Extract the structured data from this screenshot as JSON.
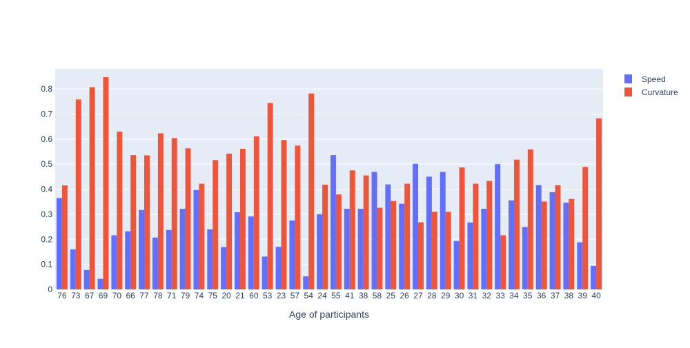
{
  "chart_data": {
    "type": "bar",
    "xlabel": "Age of participants",
    "ylabel": "",
    "ylim": [
      0,
      0.88
    ],
    "yticks": [
      0,
      0.1,
      0.2,
      0.3,
      0.4,
      0.5,
      0.6,
      0.7,
      0.8
    ],
    "ytick_labels": [
      "0",
      "0.1",
      "0.2",
      "0.3",
      "0.4",
      "0.5",
      "0.6",
      "0.7",
      "0.8"
    ],
    "grid": true,
    "legend_position": "top-right",
    "categories": [
      "76",
      "73",
      "67",
      "69",
      "70",
      "66",
      "77",
      "78",
      "71",
      "79",
      "74",
      "75",
      "20",
      "21",
      "60",
      "53",
      "23",
      "57",
      "54",
      "24",
      "55",
      "41",
      "38",
      "58",
      "25",
      "26",
      "27",
      "28",
      "29",
      "30",
      "31",
      "32",
      "33",
      "34",
      "35",
      "36",
      "37",
      "38",
      "39",
      "40"
    ],
    "series": [
      {
        "name": "Speed",
        "color": "#636efa",
        "values": [
          0.365,
          0.16,
          0.077,
          0.042,
          0.216,
          0.232,
          0.317,
          0.207,
          0.237,
          0.322,
          0.397,
          0.24,
          0.169,
          0.308,
          0.291,
          0.131,
          0.17,
          0.275,
          0.052,
          0.3,
          0.536,
          0.322,
          0.322,
          0.469,
          0.419,
          0.342,
          0.501,
          0.45,
          0.469,
          0.193,
          0.267,
          0.322,
          0.5,
          0.355,
          0.249,
          0.416,
          0.388,
          0.346,
          0.188,
          0.094
        ]
      },
      {
        "name": "Curvature",
        "color": "#ef553b",
        "values": [
          0.415,
          0.758,
          0.807,
          0.847,
          0.63,
          0.536,
          0.535,
          0.623,
          0.604,
          0.563,
          0.422,
          0.516,
          0.542,
          0.561,
          0.611,
          0.744,
          0.596,
          0.574,
          0.782,
          0.418,
          0.379,
          0.475,
          0.455,
          0.326,
          0.353,
          0.422,
          0.268,
          0.31,
          0.31,
          0.487,
          0.422,
          0.433,
          0.216,
          0.518,
          0.559,
          0.351,
          0.416,
          0.361,
          0.489,
          0.683
        ]
      }
    ]
  }
}
